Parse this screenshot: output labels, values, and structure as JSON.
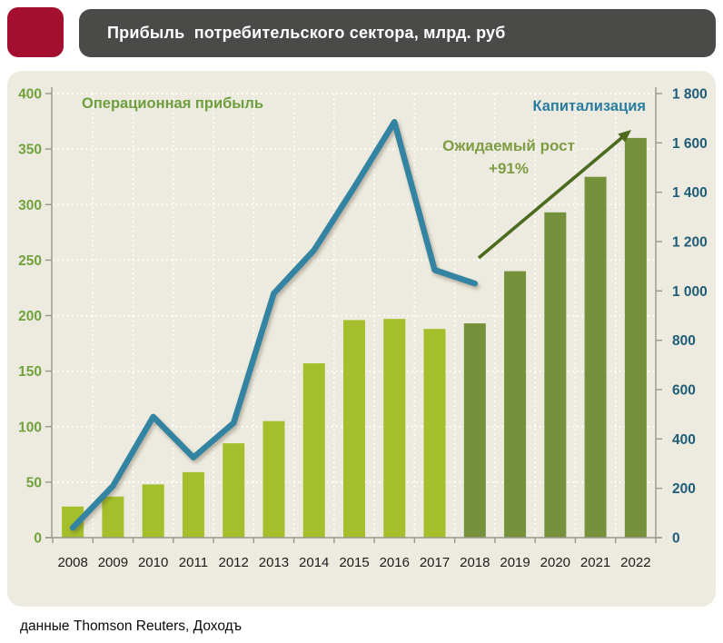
{
  "header": {
    "title": "Прибыль  потребительского сектора, млрд. руб"
  },
  "footer": {
    "source": "данные Thomson Reuters, Доходъ"
  },
  "theme": {
    "logo_red": "#a50f2f",
    "title_bar_bg": "#4a4a48",
    "title_text": "#ffffff",
    "panel_bg": "#edebdf",
    "page_bg": "#ffffff"
  },
  "chart_data": {
    "type": "combo-bar-line",
    "title": "Прибыль потребительского сектора, млрд. руб",
    "categories": [
      "2008",
      "2009",
      "2010",
      "2011",
      "2012",
      "2013",
      "2014",
      "2015",
      "2016",
      "2017",
      "2018",
      "2019",
      "2020",
      "2021",
      "2022"
    ],
    "series": [
      {
        "name": "Операционная прибыль",
        "type": "bar",
        "axis": "left",
        "values": [
          28,
          37,
          48,
          59,
          85,
          105,
          157,
          196,
          197,
          188,
          193,
          240,
          293,
          325,
          360
        ],
        "color_actual": "#a4bf2b",
        "color_forecast": "#75913c",
        "forecast_start_index": 10,
        "label_color": "#6f9e3e"
      },
      {
        "name": "Капитализация",
        "type": "line",
        "axis": "right",
        "values": [
          40,
          210,
          490,
          325,
          465,
          990,
          1165,
          1420,
          1685,
          1085,
          1030
        ],
        "color": "#3383a2",
        "label_color": "#2a7da0"
      }
    ],
    "left_axis": {
      "min": 0,
      "max": 400,
      "step": 50,
      "color": "#71a13d",
      "tick_labels": [
        "0",
        "50",
        "100",
        "150",
        "200",
        "250",
        "300",
        "350",
        "400"
      ]
    },
    "right_axis": {
      "min": 0,
      "max": 1800,
      "step": 200,
      "color": "#1e5c77",
      "tick_labels": [
        "0",
        "200",
        "400",
        "600",
        "800",
        "1 000",
        "1 200",
        "1 400",
        "1 600",
        "1 800"
      ]
    },
    "x_axis": {
      "label_color": "#1c1c1c"
    },
    "annotation": {
      "line1": "Ожидаемый рост",
      "line2": "+91%",
      "text_color": "#7d9c44",
      "arrow_color": "#4c6a20",
      "arrow_from_year": "2018",
      "arrow_to_year": "2022"
    },
    "grid": {
      "color": "#ffffff",
      "style": "dotted",
      "on": true
    },
    "axis_line_color": "#98968e",
    "background": "#edebdf",
    "legend_position": "floating: left series label top-left, right series label top-right"
  }
}
